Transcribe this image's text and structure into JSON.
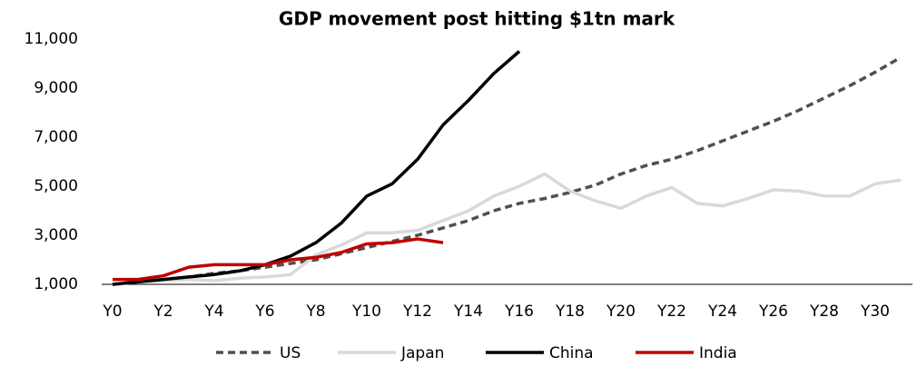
{
  "chart_data": {
    "type": "line",
    "title": "GDP movement post hitting $1tn mark",
    "categories": [
      "Y0",
      null,
      "Y2",
      null,
      "Y4",
      null,
      "Y6",
      null,
      "Y8",
      null,
      "Y10",
      null,
      "Y12",
      null,
      "Y14",
      null,
      "Y16",
      null,
      "Y18",
      null,
      "Y20",
      null,
      "Y22",
      null,
      "Y24",
      null,
      "Y26",
      null,
      "Y28",
      null,
      "Y30",
      null
    ],
    "series": [
      {
        "name": "US",
        "color": "#505050",
        "dash": true,
        "values": [
          1000,
          1100,
          1200,
          1300,
          1450,
          1550,
          1700,
          1850,
          2000,
          2250,
          2500,
          2750,
          3000,
          3300,
          3600,
          4000,
          4300,
          4500,
          4750,
          5050,
          5500,
          5850,
          6100,
          6450,
          6850,
          7250,
          7650,
          8100,
          8600,
          9100,
          9650,
          10250
        ]
      },
      {
        "name": "Japan",
        "color": "#d9d9d9",
        "dash": false,
        "values": [
          1000,
          1100,
          1150,
          1200,
          1150,
          1250,
          1300,
          1400,
          2200,
          2600,
          3100,
          3100,
          3200,
          3600,
          4000,
          4600,
          5000,
          5500,
          4800,
          4400,
          4100,
          4600,
          4950,
          4300,
          4200,
          4500,
          4850,
          4800,
          4600,
          4600,
          5100,
          5250
        ]
      },
      {
        "name": "China",
        "color": "#000000",
        "dash": false,
        "values": [
          1000,
          1100,
          1200,
          1300,
          1400,
          1550,
          1800,
          2150,
          2700,
          3500,
          4600,
          5100,
          6100,
          7500,
          8500,
          9600,
          10500,
          null,
          null,
          null,
          null,
          null,
          null,
          null,
          null,
          null,
          null,
          null,
          null,
          null,
          null,
          null
        ]
      },
      {
        "name": "India",
        "color": "#c00000",
        "dash": false,
        "values": [
          1200,
          1200,
          1350,
          1700,
          1800,
          1800,
          1800,
          2000,
          2100,
          2300,
          2650,
          2700,
          2850,
          2700,
          null,
          null,
          null,
          null,
          null,
          null,
          null,
          null,
          null,
          null,
          null,
          null,
          null,
          null,
          null,
          null,
          null,
          null
        ]
      }
    ],
    "ylim": [
      1000,
      11000
    ],
    "yticks": [
      {
        "value": 1000,
        "label": "1,000"
      },
      {
        "value": 3000,
        "label": "3,000"
      },
      {
        "value": 5000,
        "label": "5,000"
      },
      {
        "value": 7000,
        "label": "7,000"
      },
      {
        "value": 9000,
        "label": "9,000"
      },
      {
        "value": 11000,
        "label": "11,000"
      }
    ],
    "grid": false,
    "legend": "bottom"
  }
}
